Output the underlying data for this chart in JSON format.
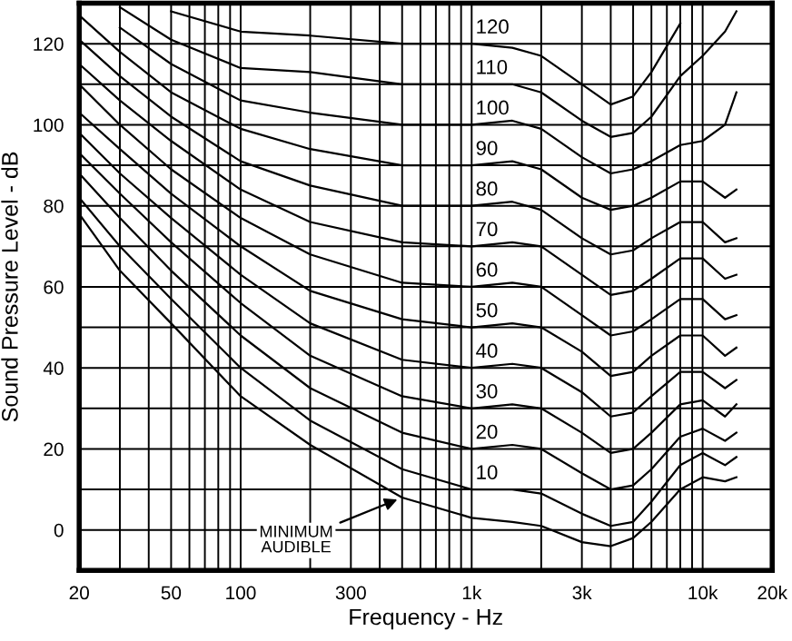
{
  "chart_data": {
    "type": "line",
    "xlabel": "Frequency - Hz",
    "ylabel": "Sound Pressure Level - dB",
    "log": "x",
    "xlim": [
      20,
      20000
    ],
    "ylim": [
      -10,
      130
    ],
    "xticks": [
      20,
      {
        "value": 30,
        "label": null
      },
      {
        "value": 40,
        "label": null
      },
      50,
      {
        "value": 60,
        "label": null
      },
      {
        "value": 70,
        "label": null
      },
      {
        "value": 80,
        "label": null
      },
      {
        "value": 90,
        "label": null
      },
      100,
      {
        "value": 200,
        "label": null
      },
      300,
      {
        "value": 400,
        "label": null
      },
      {
        "value": 500,
        "label": null
      },
      {
        "value": 600,
        "label": null
      },
      {
        "value": 700,
        "label": null
      },
      {
        "value": 800,
        "label": null
      },
      {
        "value": 900,
        "label": null
      },
      {
        "value": 1000,
        "label": "1k"
      },
      {
        "value": 2000,
        "label": null
      },
      {
        "value": 3000,
        "label": "3k"
      },
      {
        "value": 4000,
        "label": null
      },
      {
        "value": 5000,
        "label": null
      },
      {
        "value": 6000,
        "label": null
      },
      {
        "value": 7000,
        "label": null
      },
      {
        "value": 8000,
        "label": null
      },
      {
        "value": 9000,
        "label": null
      },
      {
        "value": 10000,
        "label": "10k"
      },
      {
        "value": 20000,
        "label": "20k"
      }
    ],
    "yticks": [
      0,
      {
        "value": 10,
        "label": null
      },
      20,
      {
        "value": 30,
        "label": null
      },
      40,
      {
        "value": 50,
        "label": null
      },
      60,
      {
        "value": 70,
        "label": null
      },
      80,
      {
        "value": 90,
        "label": null
      },
      100,
      {
        "value": 110,
        "label": null
      },
      120
    ],
    "grid": true,
    "legend": false,
    "marker": "none",
    "line_style": "solid",
    "x": [
      20,
      30,
      50,
      100,
      200,
      500,
      1000,
      1500,
      2000,
      3000,
      4000,
      5000,
      6000,
      8000,
      10000,
      12500,
      14000
    ],
    "series": [
      {
        "color": "#000000",
        "values": [
          78,
          64,
          51,
          33,
          21,
          8,
          3,
          2,
          1,
          -3,
          -4,
          -2,
          2,
          10,
          13,
          12,
          13
        ]
      },
      {
        "name": "10",
        "color": "#000000",
        "values": [
          82,
          70,
          57,
          40,
          27,
          15,
          10,
          10,
          9,
          4,
          1,
          2,
          7,
          16,
          19,
          16,
          18
        ]
      },
      {
        "name": "20",
        "color": "#000000",
        "values": [
          88,
          77,
          64,
          48,
          35,
          24,
          20,
          21,
          20,
          14,
          10,
          11,
          15,
          23,
          25,
          22,
          24
        ]
      },
      {
        "name": "30",
        "color": "#000000",
        "values": [
          93,
          83,
          71,
          56,
          43,
          33,
          30,
          31,
          30,
          24,
          19,
          20,
          24,
          31,
          32,
          28,
          31
        ]
      },
      {
        "name": "40",
        "color": "#000000",
        "values": [
          98,
          88,
          77,
          63,
          51,
          42,
          40,
          41,
          40,
          34,
          28,
          29,
          33,
          39,
          39,
          35,
          37
        ]
      },
      {
        "name": "50",
        "color": "#000000",
        "values": [
          103,
          94,
          83,
          70,
          59,
          52,
          50,
          51,
          50,
          44,
          38,
          39,
          43,
          48,
          48,
          43,
          45
        ]
      },
      {
        "name": "60",
        "color": "#000000",
        "values": [
          110,
          100,
          89,
          77,
          68,
          61,
          60,
          61,
          60,
          53,
          48,
          49,
          52,
          57,
          57,
          52,
          53
        ]
      },
      {
        "name": "70",
        "color": "#000000",
        "values": [
          115,
          106,
          96,
          84,
          76,
          71,
          70,
          71,
          70,
          63,
          58,
          59,
          62,
          67,
          67,
          62,
          63
        ]
      },
      {
        "name": "80",
        "color": "#000000",
        "values": [
          121,
          112,
          102,
          91,
          85,
          80,
          80,
          81,
          79,
          72,
          68,
          69,
          72,
          76,
          76,
          71,
          72
        ]
      },
      {
        "name": "90",
        "color": "#000000",
        "values": [
          127,
          118,
          108,
          99,
          94,
          90,
          90,
          91,
          89,
          82,
          79,
          80,
          82,
          86,
          86,
          82,
          84
        ]
      },
      {
        "name": "100",
        "color": "#000000",
        "values": [
          null,
          124,
          115,
          106,
          103,
          100,
          100,
          101,
          99,
          92,
          88,
          89,
          91,
          95,
          96,
          100,
          108
        ]
      },
      {
        "name": "110",
        "color": "#000000",
        "values": [
          null,
          129,
          121,
          114,
          113,
          110,
          110,
          110,
          108,
          101,
          97,
          98,
          102,
          112,
          117,
          123,
          128
        ]
      },
      {
        "name": "120",
        "color": "#000000",
        "values": [
          null,
          null,
          128,
          123,
          122,
          120,
          120,
          119,
          117,
          110,
          105,
          107,
          113,
          125,
          null,
          null,
          null
        ]
      }
    ],
    "annotations": [
      {
        "text": "MINIMUM\nAUDIBLE",
        "x": 500,
        "y": 8
      }
    ]
  }
}
